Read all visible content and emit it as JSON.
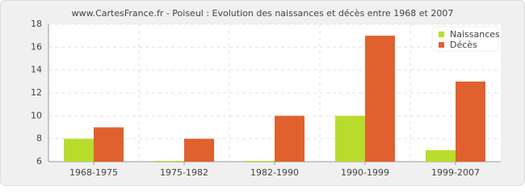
{
  "chart_data": {
    "type": "bar",
    "title": "www.CartesFrance.fr - Poiseul : Evolution des naissances et décès entre 1968 et 2007",
    "categories": [
      "1968-1975",
      "1975-1982",
      "1982-1990",
      "1990-1999",
      "1999-2007"
    ],
    "series": [
      {
        "name": "Naissances",
        "color": "#b8dc2c",
        "values": [
          8,
          6,
          6,
          10,
          7
        ]
      },
      {
        "name": "Décès",
        "color": "#e0612e",
        "values": [
          9,
          8,
          10,
          17,
          13
        ]
      }
    ],
    "ylim": [
      6,
      18
    ],
    "yticks": [
      6,
      8,
      10,
      12,
      14,
      16,
      18
    ],
    "grid": true,
    "legend": "top-right"
  }
}
